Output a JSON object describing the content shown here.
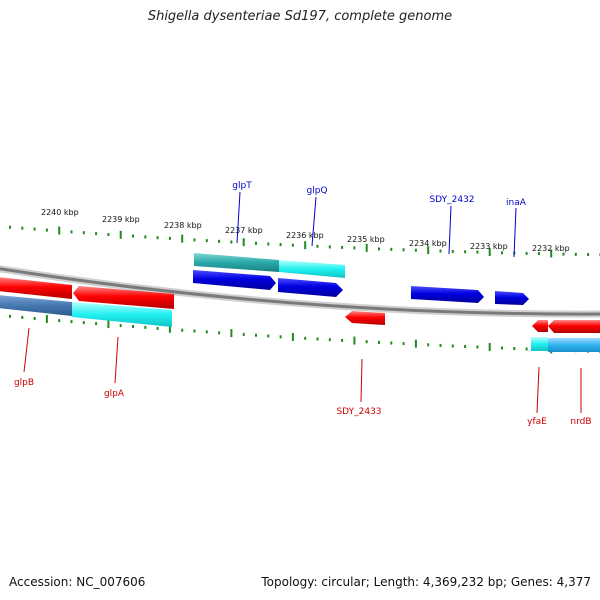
{
  "title": "Shigella dysenteriae Sd197, complete genome",
  "footer": {
    "accession": "Accession: NC_007606",
    "stats": "Topology: circular; Length: 4,369,232 bp; Genes: 4,377"
  },
  "colors": {
    "tick": "#1f8a1f",
    "backbone": "#8e8e8e",
    "forward_label": "#0000cc",
    "reverse_label": "#cc0000",
    "scale_text": "#111111"
  },
  "scale_labels": [
    "2240 kbp",
    "2239 kbp",
    "2238 kbp",
    "2237 kbp",
    "2236 kbp",
    "2235 kbp",
    "2234 kbp",
    "2233 kbp",
    "2232 kbp"
  ],
  "forward_gene_labels": [
    "glpT",
    "glpQ",
    "SDY_2432",
    "inaA"
  ],
  "reverse_gene_labels": [
    "glpB",
    "glpA",
    "SDY_2433",
    "yfaE",
    "nrdB"
  ]
}
